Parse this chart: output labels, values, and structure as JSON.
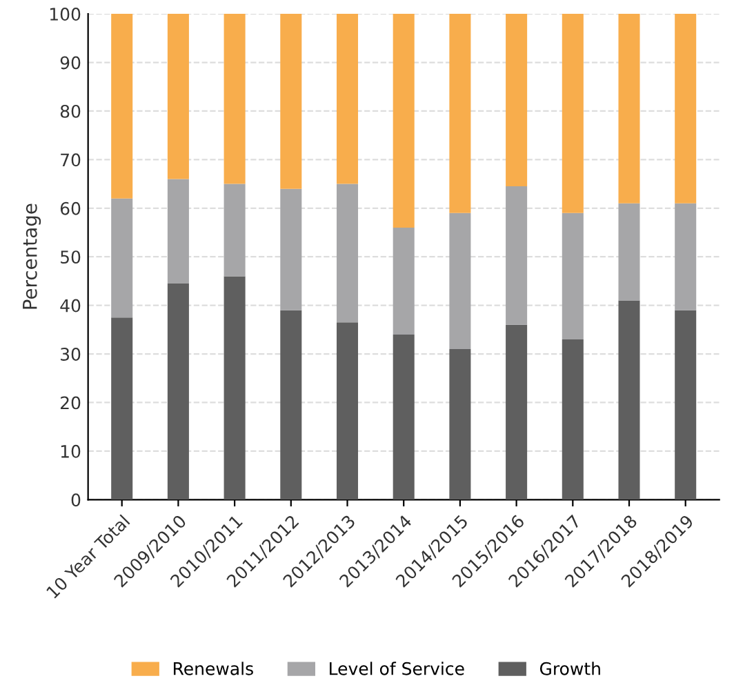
{
  "chart_data": {
    "type": "bar",
    "stacked": true,
    "ylabel": "Percentage",
    "categories": [
      "10 Year Total",
      "2009/2010",
      "2010/2011",
      "2011/2012",
      "2012/2013",
      "2013/2014",
      "2014/2015",
      "2015/2016",
      "2016/2017",
      "2017/2018",
      "2018/2019"
    ],
    "series": [
      {
        "name": "Growth",
        "color": "#5f5f5f",
        "values": [
          37.5,
          44.5,
          46,
          39,
          36.5,
          34,
          31,
          36,
          33,
          41,
          39
        ]
      },
      {
        "name": "Level of Service",
        "color": "#a6a6a8",
        "values": [
          24.5,
          21.5,
          19,
          25,
          28.5,
          22,
          28,
          28.5,
          26,
          20,
          22
        ]
      },
      {
        "name": "Renewals",
        "color": "#f8ad4c",
        "values": [
          38,
          34,
          35,
          36,
          35,
          44,
          41,
          35.5,
          41,
          39,
          39
        ]
      }
    ],
    "ylim": [
      0,
      100
    ],
    "yticks": [
      0,
      10,
      20,
      30,
      40,
      50,
      60,
      70,
      80,
      90,
      100
    ],
    "grid": "y",
    "legend": "bottom"
  }
}
